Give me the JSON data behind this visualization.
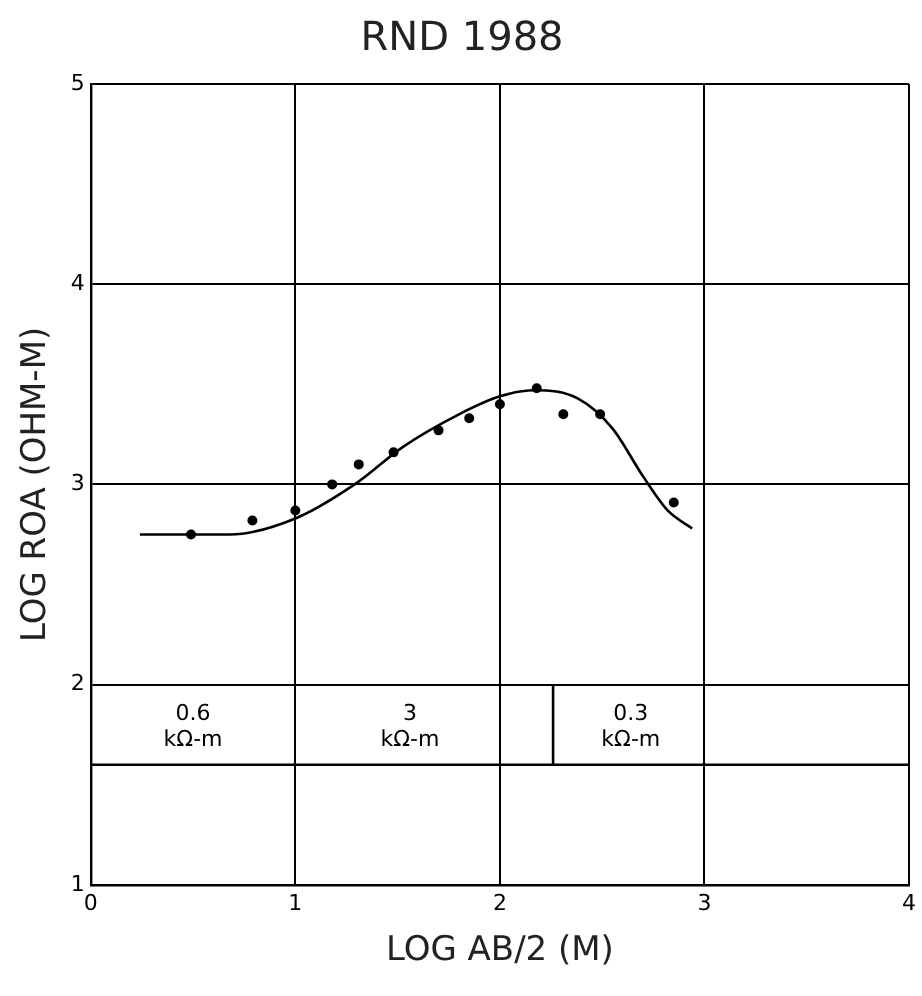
{
  "chart_data": {
    "type": "scatter",
    "title": "RND 1988",
    "xlabel": "LOG AB/2 (M)",
    "ylabel": "LOG ROA (OHM-M)",
    "xlim": [
      0,
      4
    ],
    "ylim": [
      1,
      5
    ],
    "xticks": [
      0,
      1,
      2,
      3,
      4
    ],
    "yticks": [
      1,
      2,
      3,
      4,
      5
    ],
    "grid": true,
    "legend": false,
    "marker": "circle",
    "series": [
      {
        "color": "#000000",
        "x": [
          0.49,
          0.79,
          1.0,
          1.18,
          1.31,
          1.48,
          1.7,
          1.85,
          2.0,
          2.18,
          2.31,
          2.49,
          2.85
        ],
        "values": [
          2.75,
          2.82,
          2.87,
          3.0,
          3.1,
          3.16,
          3.27,
          3.33,
          3.4,
          3.48,
          3.35,
          3.35,
          2.91
        ]
      },
      {
        "type": "line",
        "color": "#000000",
        "marker": "none",
        "x": [
          0.24,
          0.68,
          1.0,
          1.29,
          1.53,
          1.8,
          2.0,
          2.17,
          2.38,
          2.55,
          2.7,
          2.82,
          2.94
        ],
        "values": [
          2.75,
          2.75,
          2.83,
          3.0,
          3.19,
          3.35,
          3.44,
          3.47,
          3.43,
          3.28,
          3.04,
          2.87,
          2.78
        ]
      },
      {
        "type": "line",
        "color": "#000000",
        "marker": "none",
        "x": [
          0,
          4
        ],
        "values": [
          1.6,
          1.6
        ]
      },
      {
        "type": "line",
        "color": "#000000",
        "marker": "none",
        "x": [
          2.26,
          2.26
        ],
        "values": [
          1.6,
          2.0
        ]
      }
    ],
    "annotations": [
      "0.6 kΩ-m",
      "3 kΩ-m",
      "0.3 kΩ-m"
    ]
  }
}
